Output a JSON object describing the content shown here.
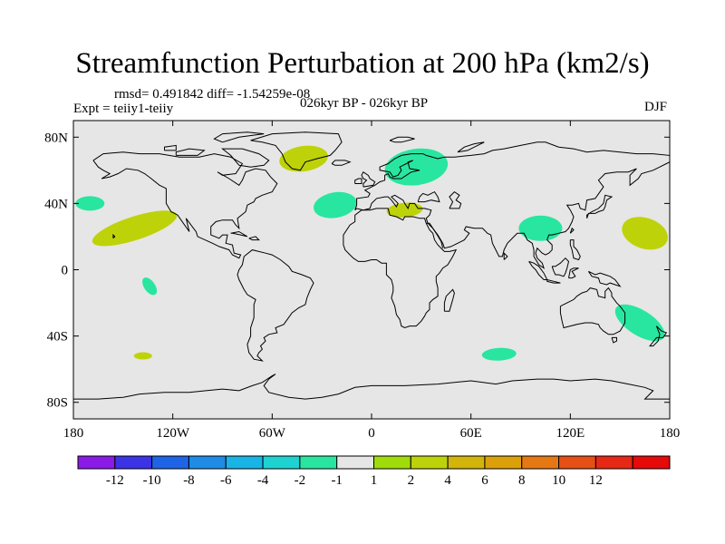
{
  "title": "Streamfunction Perturbation at 200 hPa (km2/s)",
  "stats_line": "rmsd= 0.491842 diff= -1.54259e-08",
  "experiment_label": "Expt = teiiy1-teiiy",
  "period_label": "026kyr BP - 026kyr BP",
  "season_label": "DJF",
  "map": {
    "projection": "cylindrical equidistant",
    "lon_range": [
      -180,
      180
    ],
    "lat_range": [
      -90,
      90
    ],
    "background_color": "#e6e6e6",
    "coastline_color": "#000000",
    "lat_tick_labels": [
      {
        "lat": 80,
        "label": "80N"
      },
      {
        "lat": 40,
        "label": "40N"
      },
      {
        "lat": 0,
        "label": "0"
      },
      {
        "lat": -40,
        "label": "40S"
      },
      {
        "lat": -80,
        "label": "80S"
      }
    ],
    "lon_tick_labels": [
      {
        "lon": -180,
        "label": "180"
      },
      {
        "lon": -120,
        "label": "120W"
      },
      {
        "lon": -60,
        "label": "60W"
      },
      {
        "lon": 0,
        "label": "0"
      },
      {
        "lon": 60,
        "label": "60E"
      },
      {
        "lon": 120,
        "label": "120E"
      },
      {
        "lon": 180,
        "label": "180"
      }
    ],
    "anomalies": [
      {
        "region": "central north pacific",
        "lon": -170,
        "lat": 40,
        "value": -2
      },
      {
        "region": "subtropical north pacific",
        "lon": -143,
        "lat": 25,
        "value": 2
      },
      {
        "region": "tropical south pacific",
        "lon": -134,
        "lat": -10,
        "value": -2
      },
      {
        "region": "south pacific",
        "lon": -138,
        "lat": -52,
        "value": 2
      },
      {
        "region": "greenland",
        "lon": -41,
        "lat": 67,
        "value": 2
      },
      {
        "region": "mid north atlantic",
        "lon": -22,
        "lat": 39,
        "value": -2
      },
      {
        "region": "scandinavia",
        "lon": 27,
        "lat": 62,
        "value": -2
      },
      {
        "region": "mediterranean",
        "lon": 20,
        "lat": 36,
        "value": 2
      },
      {
        "region": "southeast asia",
        "lon": 102,
        "lat": 25,
        "value": -2
      },
      {
        "region": "northwest pacific",
        "lon": 165,
        "lat": 22,
        "value": 2
      },
      {
        "region": "southern indian ocean",
        "lon": 77,
        "lat": -51,
        "value": -2
      },
      {
        "region": "eastern australia",
        "lon": 162,
        "lat": -32,
        "value": -2
      }
    ]
  },
  "colorbar": {
    "colors": [
      "#8c1ae6",
      "#3c32e6",
      "#1e64e6",
      "#1e8ce6",
      "#19b4e6",
      "#1ed2d2",
      "#28e6a0",
      "#e6e6e6",
      "#a0dc0a",
      "#bed20a",
      "#d2b40a",
      "#dca00a",
      "#e67814",
      "#e65014",
      "#e62814",
      "#e60a0a"
    ],
    "levels": [
      "-12",
      "-10",
      "-8",
      "-6",
      "-4",
      "-2",
      "-1",
      "1",
      "2",
      "4",
      "6",
      "8",
      "10",
      "12"
    ]
  }
}
